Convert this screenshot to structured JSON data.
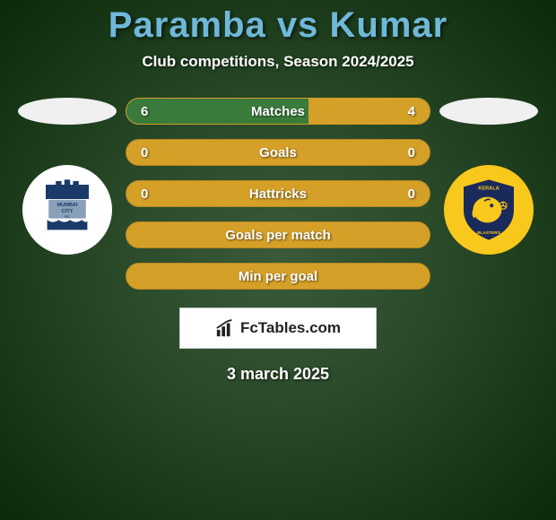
{
  "title": "Paramba vs Kumar",
  "subtitle": "Club competitions, Season 2024/2025",
  "date": "3 march 2025",
  "fctables_label": "FcTables.com",
  "colors": {
    "title": "#6fb8d8",
    "bar_left": "#3a7a3a",
    "bar_right": "#d4a028",
    "bar_border": "#d4a028",
    "logo_left_bg": "#ffffff",
    "logo_right_bg": "#f8c81c",
    "logo_left_primary": "#1a3a6a",
    "logo_right_primary": "#1a2a5a"
  },
  "bars": [
    {
      "label": "Matches",
      "left": "6",
      "right": "4",
      "left_pct": 60,
      "right_pct": 40,
      "full_orange": false
    },
    {
      "label": "Goals",
      "left": "0",
      "right": "0",
      "left_pct": 0,
      "right_pct": 0,
      "full_orange": true
    },
    {
      "label": "Hattricks",
      "left": "0",
      "right": "0",
      "left_pct": 0,
      "right_pct": 0,
      "full_orange": true
    },
    {
      "label": "Goals per match",
      "left": "",
      "right": "",
      "left_pct": 0,
      "right_pct": 0,
      "full_orange": true
    },
    {
      "label": "Min per goal",
      "left": "",
      "right": "",
      "left_pct": 0,
      "right_pct": 0,
      "full_orange": true
    }
  ],
  "logos": {
    "left": {
      "name": "Mumbai City FC"
    },
    "right": {
      "name": "Kerala Blasters"
    }
  }
}
